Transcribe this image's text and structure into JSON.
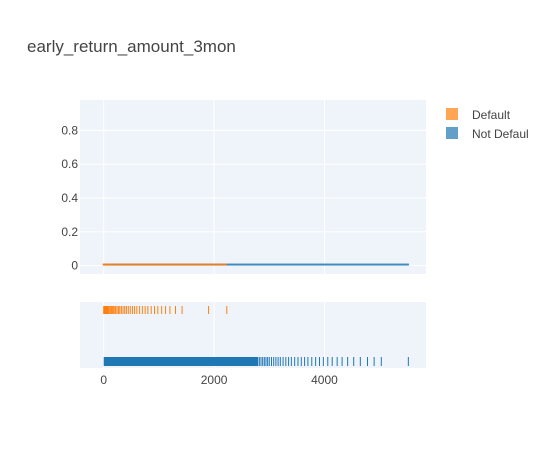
{
  "chart_data": {
    "type": "histogram-with-rug",
    "title": "early_return_amount_3mon",
    "xlabel": "",
    "ylabel": "",
    "ylim": [
      -0.05,
      0.98
    ],
    "xlim": [
      -430,
      5840
    ],
    "y_ticks": [
      {
        "value": 0,
        "label": "0"
      },
      {
        "value": 0.2,
        "label": "0.2"
      },
      {
        "value": 0.4,
        "label": "0.4"
      },
      {
        "value": 0.6,
        "label": "0.6"
      },
      {
        "value": 0.8,
        "label": "0.8"
      }
    ],
    "x_ticks": [
      {
        "value": 0,
        "label": "0"
      },
      {
        "value": 2000,
        "label": "2000"
      },
      {
        "value": 4000,
        "label": "4000"
      }
    ],
    "grid": true,
    "legend_position": "top-right",
    "series": [
      {
        "name": "Default",
        "color": "#ff7f0e",
        "hist_x_range": [
          0,
          2230
        ],
        "hist_peak": 0.008,
        "rug": [
          0,
          5,
          12,
          18,
          25,
          35,
          50,
          60,
          75,
          90,
          110,
          130,
          150,
          170,
          190,
          215,
          240,
          265,
          290,
          320,
          350,
          380,
          410,
          445,
          480,
          520,
          560,
          600,
          650,
          700,
          750,
          800,
          860,
          920,
          980,
          1050,
          1120,
          1200,
          1300,
          1420,
          1900,
          2230
        ]
      },
      {
        "name": "Not Default",
        "color": "#1f77b4",
        "hist_x_range": [
          0,
          5530
        ],
        "hist_peak": 0.007,
        "rug_dense_until": 2800,
        "rug": [
          2820,
          2850,
          2880,
          2910,
          2940,
          2970,
          3000,
          3040,
          3080,
          3120,
          3160,
          3200,
          3250,
          3300,
          3350,
          3400,
          3460,
          3520,
          3580,
          3640,
          3700,
          3770,
          3840,
          3910,
          3980,
          4060,
          4140,
          4230,
          4320,
          4420,
          4530,
          4650,
          4780,
          4900,
          5030,
          5520
        ]
      }
    ]
  },
  "legend": {
    "items": [
      {
        "label": "Default",
        "color": "#ff7f0e"
      },
      {
        "label": "Not Defaul",
        "color": "#1f77b4"
      }
    ]
  }
}
